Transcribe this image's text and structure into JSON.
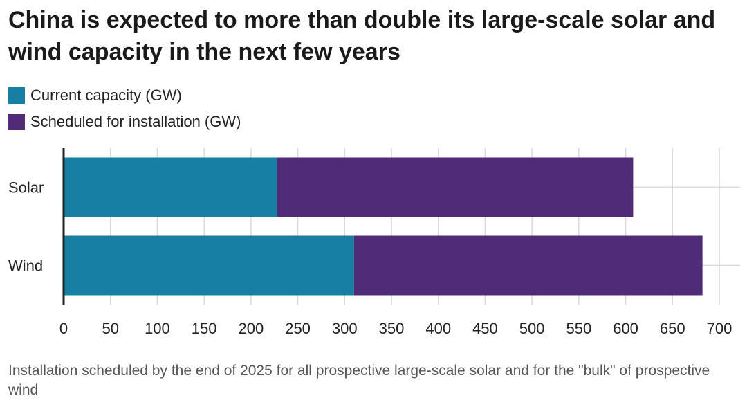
{
  "title": "China is expected to more than double its large-scale solar and wind capacity in the next few years",
  "legend": {
    "items": [
      {
        "label": "Current capacity (GW)",
        "color": "#167fa3"
      },
      {
        "label": "Scheduled for installation (GW)",
        "color": "#502c78"
      }
    ]
  },
  "footnote": "Installation scheduled by the end of 2025 for all prospective large-scale solar and for the \"bulk\" of prospective wind",
  "chart_data": {
    "type": "bar",
    "orientation": "horizontal",
    "stacked": true,
    "title": "China is expected to more than double its large-scale solar and wind capacity in the next few years",
    "categories": [
      "Solar",
      "Wind"
    ],
    "series": [
      {
        "name": "Current capacity (GW)",
        "values": [
          228,
          310
        ],
        "color": "#167fa3"
      },
      {
        "name": "Scheduled for installation (GW)",
        "values": [
          380,
          372
        ],
        "color": "#502c78"
      }
    ],
    "xlim": [
      0,
      700
    ],
    "xticks": [
      0,
      50,
      100,
      150,
      200,
      250,
      300,
      350,
      400,
      450,
      500,
      550,
      600,
      650,
      700
    ],
    "xlabel": "",
    "ylabel": "",
    "grid": true
  }
}
